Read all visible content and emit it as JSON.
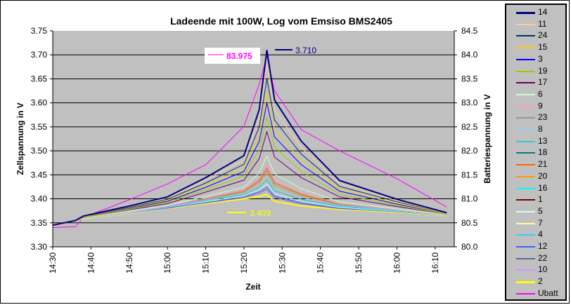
{
  "chart_data": {
    "type": "line",
    "title": "Ladeende mit 100W, Log vom Emsiso BMS2405",
    "xlabel": "Zeit",
    "ylabel": "Zellspannung in V",
    "y2label": "Batteriespannung in V",
    "xlim": [
      "14:30",
      "16:15"
    ],
    "ylim": [
      3.3,
      3.75
    ],
    "y2lim": [
      80.0,
      84.5
    ],
    "grid": true,
    "legend_position": "right",
    "x_ticks": [
      "14:30",
      "14:40",
      "14:50",
      "15:00",
      "15:10",
      "15:20",
      "15:30",
      "15:40",
      "15:50",
      "16:00",
      "16:10"
    ],
    "y_ticks": [
      "3.30",
      "3.35",
      "3.40",
      "3.45",
      "3.50",
      "3.55",
      "3.60",
      "3.65",
      "3.70",
      "3.75"
    ],
    "y2_ticks": [
      "80.0",
      "80.5",
      "81.0",
      "81.5",
      "82.0",
      "82.5",
      "83.0",
      "83.5",
      "84.0",
      "84.5"
    ],
    "x": [
      "14:30",
      "14:36",
      "14:38",
      "14:50",
      "15:00",
      "15:10",
      "15:20",
      "15:24",
      "15:26",
      "15:28",
      "15:35",
      "15:45",
      "16:00",
      "16:13"
    ],
    "series": [
      {
        "name": "14",
        "color": "#000080",
        "width": 2,
        "values": [
          3.345,
          3.355,
          3.364,
          3.385,
          3.404,
          3.444,
          3.49,
          3.586,
          3.71,
          3.606,
          3.52,
          3.438,
          3.399,
          3.371
        ]
      },
      {
        "name": "11",
        "color": "#FFCC99",
        "width": 1,
        "values": [
          3.345,
          3.355,
          3.363,
          3.384,
          3.402,
          3.439,
          3.481,
          3.568,
          3.68,
          3.585,
          3.507,
          3.432,
          3.396,
          3.37
        ]
      },
      {
        "name": "24",
        "color": "#003366",
        "width": 1,
        "values": [
          3.345,
          3.355,
          3.363,
          3.382,
          3.399,
          3.433,
          3.472,
          3.55,
          3.65,
          3.564,
          3.493,
          3.426,
          3.394,
          3.37
        ]
      },
      {
        "name": "15",
        "color": "#FFCC00",
        "width": 1,
        "values": [
          3.345,
          3.355,
          3.362,
          3.381,
          3.397,
          3.428,
          3.463,
          3.532,
          3.62,
          3.543,
          3.48,
          3.42,
          3.391,
          3.369
        ]
      },
      {
        "name": "3",
        "color": "#0000FF",
        "width": 1,
        "values": [
          3.345,
          3.355,
          3.362,
          3.38,
          3.395,
          3.424,
          3.457,
          3.52,
          3.6,
          3.529,
          3.471,
          3.416,
          3.389,
          3.369
        ]
      },
      {
        "name": "19",
        "color": "#99CC00",
        "width": 1,
        "values": [
          3.345,
          3.355,
          3.361,
          3.378,
          3.393,
          3.419,
          3.448,
          3.502,
          3.57,
          3.508,
          3.457,
          3.41,
          3.386,
          3.368
        ]
      },
      {
        "name": "17",
        "color": "#660066",
        "width": 1,
        "values": [
          3.345,
          3.355,
          3.361,
          3.377,
          3.39,
          3.414,
          3.439,
          3.484,
          3.54,
          3.487,
          3.444,
          3.404,
          3.384,
          3.368
        ]
      },
      {
        "name": "6",
        "color": "#CCFFCC",
        "width": 1,
        "values": [
          3.345,
          3.355,
          3.36,
          3.374,
          3.386,
          3.405,
          3.424,
          3.454,
          3.49,
          3.452,
          3.421,
          3.394,
          3.379,
          3.367
        ]
      },
      {
        "name": "9",
        "color": "#FF99CC",
        "width": 1,
        "values": [
          3.345,
          3.355,
          3.359,
          3.373,
          3.385,
          3.401,
          3.418,
          3.442,
          3.47,
          3.438,
          3.412,
          3.39,
          3.377,
          3.366
        ]
      },
      {
        "name": "23",
        "color": "#969696",
        "width": 1,
        "values": [
          3.345,
          3.355,
          3.359,
          3.373,
          3.384,
          3.399,
          3.415,
          3.436,
          3.46,
          3.431,
          3.408,
          3.388,
          3.377,
          3.366
        ]
      },
      {
        "name": "8",
        "color": "#99CCFF",
        "width": 1,
        "values": [
          3.345,
          3.355,
          3.359,
          3.372,
          3.383,
          3.397,
          3.412,
          3.43,
          3.45,
          3.424,
          3.403,
          3.386,
          3.376,
          3.366
        ]
      },
      {
        "name": "13",
        "color": "#33CCCC",
        "width": 1,
        "values": [
          3.345,
          3.355,
          3.359,
          3.372,
          3.382,
          3.396,
          3.409,
          3.424,
          3.44,
          3.417,
          3.399,
          3.384,
          3.375,
          3.366
        ]
      },
      {
        "name": "18",
        "color": "#008080",
        "width": 1,
        "values": [
          3.345,
          3.355,
          3.359,
          3.372,
          3.383,
          3.397,
          3.412,
          3.43,
          3.45,
          3.424,
          3.403,
          3.386,
          3.376,
          3.366
        ]
      },
      {
        "name": "21",
        "color": "#FF6600",
        "width": 1,
        "values": [
          3.345,
          3.355,
          3.359,
          3.373,
          3.384,
          3.4,
          3.417,
          3.439,
          3.465,
          3.434,
          3.41,
          3.389,
          3.377,
          3.366
        ]
      },
      {
        "name": "20",
        "color": "#FF9900",
        "width": 1,
        "values": [
          3.345,
          3.355,
          3.359,
          3.372,
          3.384,
          3.398,
          3.414,
          3.433,
          3.455,
          3.427,
          3.406,
          3.387,
          3.376,
          3.366
        ]
      },
      {
        "name": "16",
        "color": "#00FFFF",
        "width": 1,
        "values": [
          3.345,
          3.355,
          3.359,
          3.372,
          3.382,
          3.396,
          3.409,
          3.424,
          3.44,
          3.417,
          3.399,
          3.384,
          3.375,
          3.366
        ]
      },
      {
        "name": "1",
        "color": "#800000",
        "width": 1,
        "values": [
          3.345,
          3.355,
          3.359,
          3.372,
          3.382,
          3.396,
          3.409,
          3.424,
          3.44,
          3.417,
          3.399,
          3.384,
          3.375,
          3.366
        ]
      },
      {
        "name": "5",
        "color": "#CCFFFF",
        "width": 1,
        "values": [
          3.345,
          3.355,
          3.358,
          3.371,
          3.382,
          3.394,
          3.406,
          3.418,
          3.43,
          3.41,
          3.394,
          3.382,
          3.374,
          3.365
        ]
      },
      {
        "name": "7",
        "color": "#FFFF99",
        "width": 1,
        "values": [
          3.345,
          3.355,
          3.359,
          3.372,
          3.382,
          3.396,
          3.409,
          3.424,
          3.44,
          3.417,
          3.399,
          3.384,
          3.375,
          3.366
        ]
      },
      {
        "name": "4",
        "color": "#33CCFF",
        "width": 1,
        "values": [
          3.345,
          3.355,
          3.358,
          3.371,
          3.382,
          3.394,
          3.406,
          3.418,
          3.43,
          3.41,
          3.394,
          3.382,
          3.374,
          3.365
        ]
      },
      {
        "name": "12",
        "color": "#3366FF",
        "width": 1,
        "values": [
          3.345,
          3.355,
          3.358,
          3.371,
          3.381,
          3.393,
          3.405,
          3.415,
          3.425,
          3.406,
          3.392,
          3.381,
          3.373,
          3.365
        ]
      },
      {
        "name": "22",
        "color": "#666699",
        "width": 1,
        "values": [
          3.345,
          3.355,
          3.358,
          3.371,
          3.381,
          3.392,
          3.403,
          3.412,
          3.42,
          3.403,
          3.39,
          3.38,
          3.373,
          3.365
        ]
      },
      {
        "name": "10",
        "color": "#CC99FF",
        "width": 1,
        "values": [
          3.345,
          3.355,
          3.358,
          3.37,
          3.38,
          3.391,
          3.402,
          3.409,
          3.415,
          3.399,
          3.388,
          3.379,
          3.373,
          3.365
        ]
      },
      {
        "name": "2",
        "color": "#FFFF00",
        "width": 2,
        "values": [
          3.345,
          3.355,
          3.358,
          3.37,
          3.38,
          3.39,
          3.4,
          3.405,
          3.409,
          3.395,
          3.385,
          3.378,
          3.372,
          3.365
        ]
      },
      {
        "name": "Ubatt",
        "color": "#FF00FF",
        "width": 1,
        "axis": "right",
        "values": [
          80.4,
          80.42,
          80.61,
          80.98,
          81.31,
          81.71,
          82.51,
          83.39,
          83.975,
          83.25,
          82.44,
          82.0,
          81.42,
          80.83
        ]
      }
    ],
    "annotations": [
      {
        "label": "83.975",
        "color": "#FF00FF",
        "series": "Ubatt"
      },
      {
        "label": "3.710",
        "color": "#000080",
        "series": "14"
      },
      {
        "label": "3.409",
        "color": "#FFFF00",
        "series": "2"
      }
    ]
  }
}
